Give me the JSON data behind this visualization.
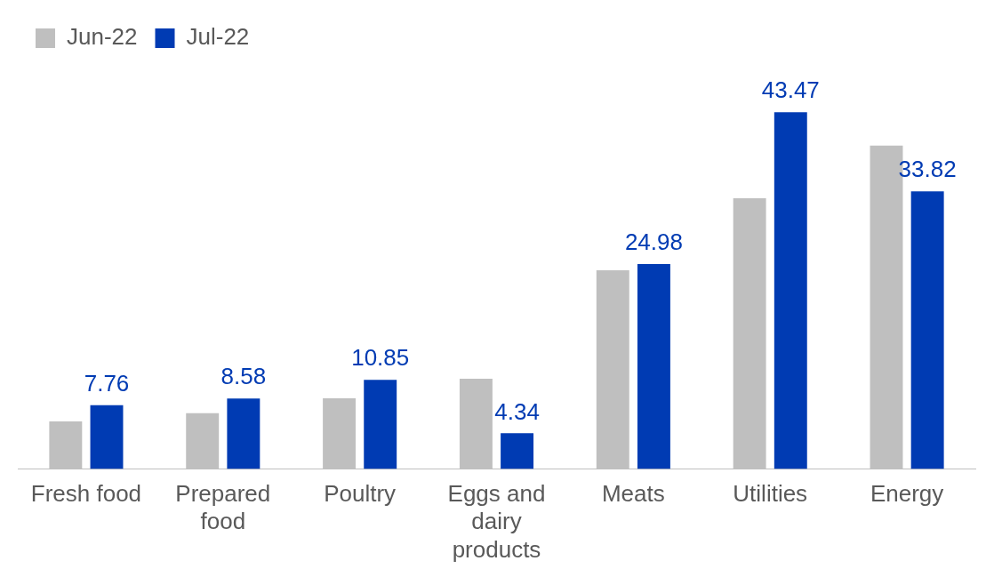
{
  "chart_data": {
    "type": "bar",
    "categories": [
      "Fresh food",
      "Prepared food",
      "Poultry",
      "Eggs and dairy products",
      "Meats",
      "Utilities",
      "Energy"
    ],
    "series": [
      {
        "name": "Jun-22",
        "color": "#bfbfbf",
        "values": [
          5.8,
          6.8,
          8.6,
          11.0,
          24.2,
          33.0,
          39.4
        ]
      },
      {
        "name": "Jul-22",
        "color": "#003bb3",
        "values": [
          7.76,
          8.58,
          10.85,
          4.34,
          24.98,
          43.47,
          33.82
        ],
        "value_labels": [
          "7.76",
          "8.58",
          "10.85",
          "4.34",
          "24.98",
          "43.47",
          "33.82"
        ]
      }
    ],
    "legend": "top left",
    "grid": false
  }
}
